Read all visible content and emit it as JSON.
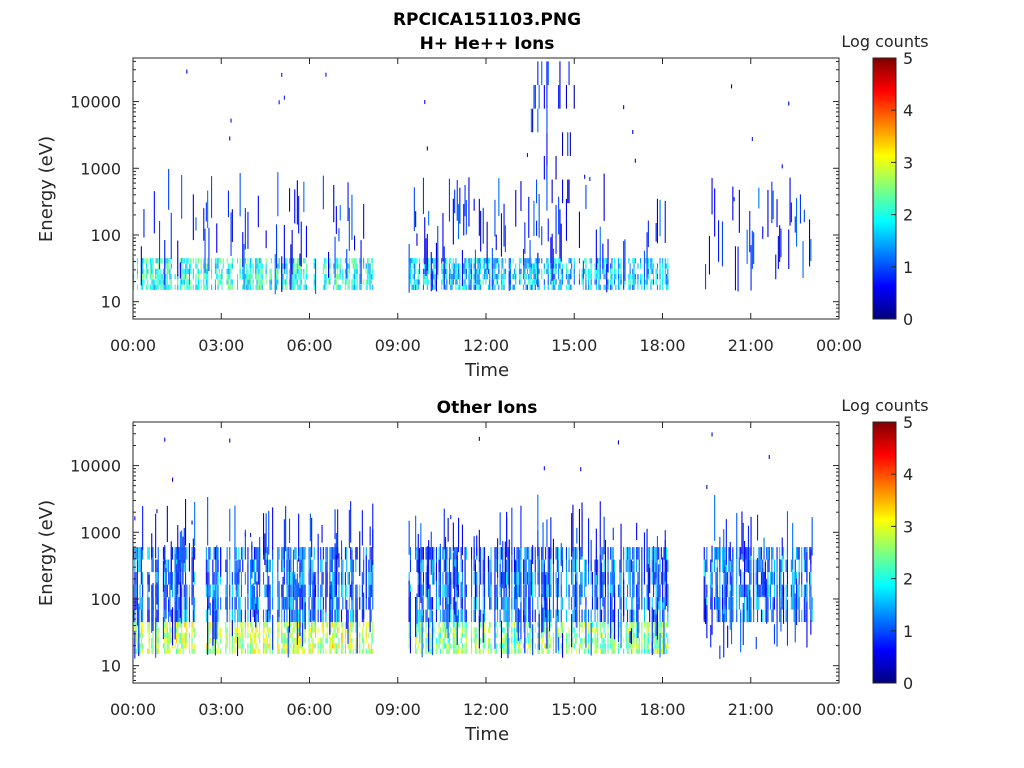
{
  "figure": {
    "title": "RPCICA151103.PNG"
  },
  "colormap": {
    "name": "jet",
    "stops": [
      "#00007f",
      "#0000ff",
      "#007fff",
      "#00ffff",
      "#7fff7f",
      "#ffff00",
      "#ff7f00",
      "#ff0000",
      "#7f0000"
    ]
  },
  "chart_data": [
    {
      "type": "heatmap",
      "title": "H+ He++ Ions",
      "xlabel": "Time",
      "ylabel": "Energy (eV)",
      "x_tick_labels": [
        "00:00",
        "03:00",
        "06:00",
        "09:00",
        "12:00",
        "15:00",
        "18:00",
        "21:00",
        "00:00"
      ],
      "x_tick_hours": [
        0,
        3,
        6,
        9,
        12,
        15,
        18,
        21,
        24
      ],
      "xlim_hours": [
        0,
        24
      ],
      "y_scale": "log",
      "ylim_eV": [
        5.5,
        45000
      ],
      "y_tick_labels": [
        "10",
        "100",
        "1000",
        "10000"
      ],
      "y_tick_values": [
        10,
        100,
        1000,
        10000
      ],
      "colorbar": {
        "label": "Log counts",
        "range": [
          0,
          5
        ],
        "tick_labels": [
          "0",
          "1",
          "2",
          "3",
          "4",
          "5"
        ]
      },
      "data_intervals_hours": [
        [
          0,
          8.2
        ],
        [
          9.3,
          18.2
        ],
        [
          19.4,
          23.1
        ]
      ],
      "features": [
        {
          "time_hours": [
            0,
            8.2
          ],
          "energy_eV": [
            15,
            45
          ],
          "log_counts": 2.0
        },
        {
          "time_hours": [
            9.3,
            18.2
          ],
          "energy_eV": [
            15,
            45
          ],
          "log_counts": 1.6
        },
        {
          "time_hours": [
            13.5,
            15.0
          ],
          "energy_eV": [
            300,
            40000
          ],
          "log_counts": 0.6
        }
      ]
    },
    {
      "type": "heatmap",
      "title": "Other Ions",
      "xlabel": "Time",
      "ylabel": "Energy (eV)",
      "x_tick_labels": [
        "00:00",
        "03:00",
        "06:00",
        "09:00",
        "12:00",
        "15:00",
        "18:00",
        "21:00",
        "00:00"
      ],
      "x_tick_hours": [
        0,
        3,
        6,
        9,
        12,
        15,
        18,
        21,
        24
      ],
      "xlim_hours": [
        0,
        24
      ],
      "y_scale": "log",
      "ylim_eV": [
        5.5,
        45000
      ],
      "y_tick_labels": [
        "10",
        "100",
        "1000",
        "10000"
      ],
      "y_tick_values": [
        10,
        100,
        1000,
        10000
      ],
      "colorbar": {
        "label": "Log counts",
        "range": [
          0,
          5
        ],
        "tick_labels": [
          "0",
          "1",
          "2",
          "3",
          "4",
          "5"
        ]
      },
      "data_intervals_hours": [
        [
          0,
          8.2
        ],
        [
          9.3,
          18.2
        ],
        [
          19.4,
          23.1
        ]
      ],
      "features": [
        {
          "time_hours": [
            0,
            8.2
          ],
          "energy_eV": [
            15,
            45
          ],
          "log_counts": 2.8
        },
        {
          "time_hours": [
            9.3,
            18.2
          ],
          "energy_eV": [
            15,
            45
          ],
          "log_counts": 2.5
        },
        {
          "time_hours": [
            0,
            23.1
          ],
          "energy_eV": [
            45,
            600
          ],
          "log_counts": 1.2
        }
      ]
    }
  ]
}
